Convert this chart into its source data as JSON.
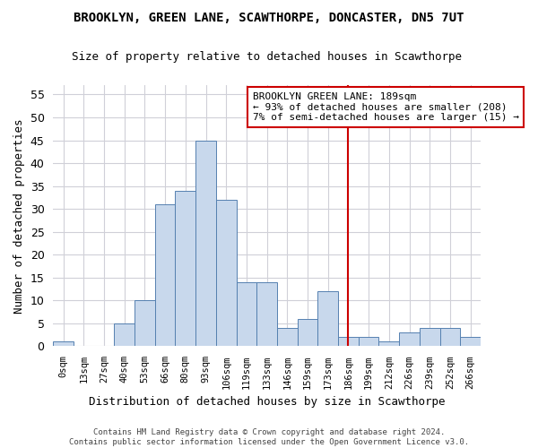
{
  "title": "BROOKLYN, GREEN LANE, SCAWTHORPE, DONCASTER, DN5 7UT",
  "subtitle": "Size of property relative to detached houses in Scawthorpe",
  "xlabel": "Distribution of detached houses by size in Scawthorpe",
  "ylabel": "Number of detached properties",
  "bin_labels": [
    "0sqm",
    "13sqm",
    "27sqm",
    "40sqm",
    "53sqm",
    "66sqm",
    "80sqm",
    "93sqm",
    "106sqm",
    "119sqm",
    "133sqm",
    "146sqm",
    "159sqm",
    "173sqm",
    "186sqm",
    "199sqm",
    "212sqm",
    "226sqm",
    "239sqm",
    "252sqm",
    "266sqm"
  ],
  "bar_values": [
    1,
    0,
    0,
    5,
    10,
    31,
    34,
    45,
    32,
    14,
    14,
    4,
    6,
    12,
    2,
    2,
    1,
    3,
    4,
    4,
    2
  ],
  "bar_color": "#c8d8ec",
  "bar_edge_color": "#5580b0",
  "ylim": [
    0,
    57
  ],
  "yticks": [
    0,
    5,
    10,
    15,
    20,
    25,
    30,
    35,
    40,
    45,
    50,
    55
  ],
  "vline_x": 14,
  "vline_color": "#cc0000",
  "annotation_line1": "BROOKLYN GREEN LANE: 189sqm",
  "annotation_line2": "← 93% of detached houses are smaller (208)",
  "annotation_line3": "7% of semi-detached houses are larger (15) →",
  "annotation_box_color": "#cc0000",
  "footer_text": "Contains HM Land Registry data © Crown copyright and database right 2024.\nContains public sector information licensed under the Open Government Licence v3.0.",
  "bg_color": "#ffffff",
  "grid_color": "#d0d0d8"
}
